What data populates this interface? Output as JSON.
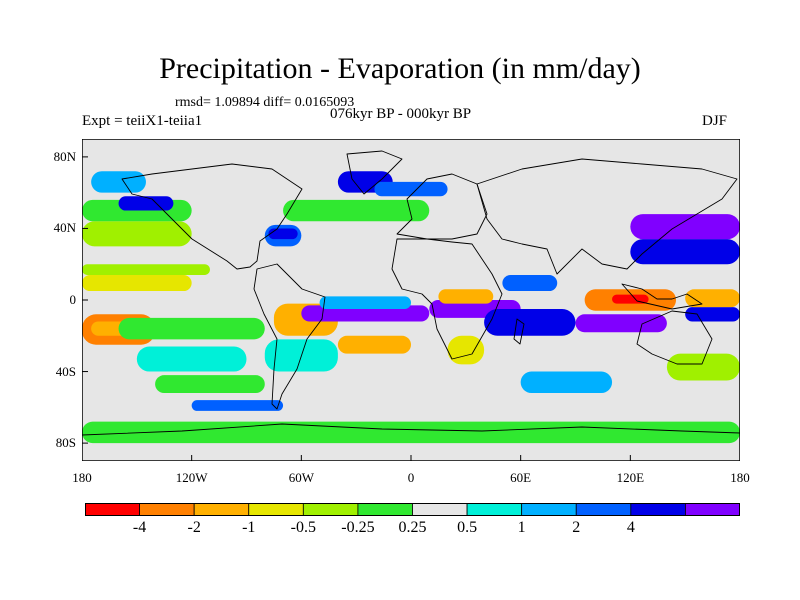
{
  "figure": {
    "title": "Precipitation - Evaporation (in mm/day)",
    "stats": "rmsd= 1.09894 diff= 0.0165093",
    "experiment": "Expt = teiiX1-teiia1",
    "period": "076kyr BP - 000kyr BP",
    "season": "DJF"
  },
  "chart_data": {
    "type": "heatmap",
    "projection": "cylindrical-equidistant",
    "lon_range": [
      -180,
      180
    ],
    "lat_range": [
      -90,
      90
    ],
    "lat_ticks": [
      {
        "value": 80,
        "label": "80N"
      },
      {
        "value": 40,
        "label": "40N"
      },
      {
        "value": 0,
        "label": "0"
      },
      {
        "value": -40,
        "label": "40S"
      },
      {
        "value": -80,
        "label": "80S"
      }
    ],
    "lon_ticks": [
      {
        "value": -180,
        "label": "180"
      },
      {
        "value": -120,
        "label": "120W"
      },
      {
        "value": -60,
        "label": "60W"
      },
      {
        "value": 0,
        "label": "0"
      },
      {
        "value": 60,
        "label": "60E"
      },
      {
        "value": 120,
        "label": "120E"
      },
      {
        "value": 180,
        "label": "180"
      }
    ],
    "colorbar": {
      "labels": [
        "-4",
        "-2",
        "-1",
        "-0.5",
        "-0.25",
        "0.25",
        "0.5",
        "1",
        "2",
        "4"
      ],
      "colors": [
        "#ff0000",
        "#ff8000",
        "#ffb000",
        "#e6e600",
        "#a0f000",
        "#30e830",
        "#e6e6e6",
        "#00f0d8",
        "#00b0ff",
        "#0060ff",
        "#0000e8",
        "#8000ff"
      ]
    },
    "background_color": "#e6e6e6",
    "regions": [
      {
        "lon": [
          -180,
          -140
        ],
        "lat": [
          -25,
          -8
        ],
        "level": 1
      },
      {
        "lon": [
          -175,
          -150
        ],
        "lat": [
          -20,
          -12
        ],
        "level": 2
      },
      {
        "lon": [
          -180,
          -120
        ],
        "lat": [
          5,
          14
        ],
        "level": 3
      },
      {
        "lon": [
          -180,
          -110
        ],
        "lat": [
          14,
          20
        ],
        "level": 4
      },
      {
        "lon": [
          -180,
          -120
        ],
        "lat": [
          30,
          44
        ],
        "level": 4
      },
      {
        "lon": [
          -180,
          -120
        ],
        "lat": [
          44,
          56
        ],
        "level": 5
      },
      {
        "lon": [
          -160,
          -80
        ],
        "lat": [
          -22,
          -10
        ],
        "level": 5
      },
      {
        "lon": [
          -150,
          -90
        ],
        "lat": [
          -40,
          -26
        ],
        "level": 7
      },
      {
        "lon": [
          -140,
          -80
        ],
        "lat": [
          -52,
          -42
        ],
        "level": 5
      },
      {
        "lon": [
          -175,
          -145
        ],
        "lat": [
          60,
          72
        ],
        "level": 8
      },
      {
        "lon": [
          -160,
          -130
        ],
        "lat": [
          50,
          58
        ],
        "level": 10
      },
      {
        "lon": [
          -80,
          -60
        ],
        "lat": [
          30,
          42
        ],
        "level": 9
      },
      {
        "lon": [
          -78,
          -62
        ],
        "lat": [
          34,
          40
        ],
        "level": 10
      },
      {
        "lon": [
          -40,
          -10
        ],
        "lat": [
          60,
          72
        ],
        "level": 10
      },
      {
        "lon": [
          -20,
          20
        ],
        "lat": [
          58,
          66
        ],
        "level": 9
      },
      {
        "lon": [
          -70,
          10
        ],
        "lat": [
          44,
          56
        ],
        "level": 5
      },
      {
        "lon": [
          -75,
          -40
        ],
        "lat": [
          -20,
          -2
        ],
        "level": 2
      },
      {
        "lon": [
          -60,
          10
        ],
        "lat": [
          -12,
          -3
        ],
        "level": 11
      },
      {
        "lon": [
          -50,
          0
        ],
        "lat": [
          -5,
          2
        ],
        "level": 8
      },
      {
        "lon": [
          -80,
          -40
        ],
        "lat": [
          -40,
          -22
        ],
        "level": 7
      },
      {
        "lon": [
          -40,
          0
        ],
        "lat": [
          -30,
          -20
        ],
        "level": 2
      },
      {
        "lon": [
          10,
          60
        ],
        "lat": [
          -10,
          0
        ],
        "level": 11
      },
      {
        "lon": [
          15,
          45
        ],
        "lat": [
          -2,
          6
        ],
        "level": 2
      },
      {
        "lon": [
          20,
          40
        ],
        "lat": [
          -36,
          -20
        ],
        "level": 3
      },
      {
        "lon": [
          40,
          90
        ],
        "lat": [
          -20,
          -5
        ],
        "level": 10
      },
      {
        "lon": [
          50,
          80
        ],
        "lat": [
          5,
          14
        ],
        "level": 9
      },
      {
        "lon": [
          90,
          140
        ],
        "lat": [
          -18,
          -8
        ],
        "level": 11
      },
      {
        "lon": [
          95,
          145
        ],
        "lat": [
          -6,
          6
        ],
        "level": 1
      },
      {
        "lon": [
          110,
          130
        ],
        "lat": [
          -2,
          3
        ],
        "level": 0
      },
      {
        "lon": [
          120,
          180
        ],
        "lat": [
          20,
          34
        ],
        "level": 10
      },
      {
        "lon": [
          120,
          180
        ],
        "lat": [
          34,
          48
        ],
        "level": 11
      },
      {
        "lon": [
          140,
          180
        ],
        "lat": [
          -45,
          -30
        ],
        "level": 4
      },
      {
        "lon": [
          150,
          180
        ],
        "lat": [
          -12,
          -4
        ],
        "level": 10
      },
      {
        "lon": [
          150,
          180
        ],
        "lat": [
          -4,
          6
        ],
        "level": 2
      },
      {
        "lon": [
          60,
          110
        ],
        "lat": [
          -52,
          -40
        ],
        "level": 8
      },
      {
        "lon": [
          -180,
          180
        ],
        "lat": [
          -80,
          -68
        ],
        "level": 5
      },
      {
        "lon": [
          -120,
          -70
        ],
        "lat": [
          -62,
          -56
        ],
        "level": 9
      }
    ]
  }
}
